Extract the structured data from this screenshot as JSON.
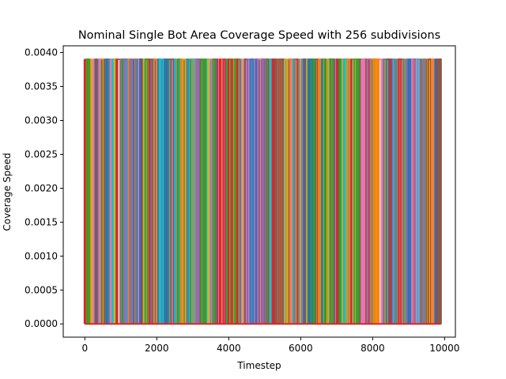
{
  "chart_data": {
    "type": "line",
    "title": "Nominal Single Bot Area Coverage Speed with 256 subdivisions",
    "xlabel": "Timestep",
    "ylabel": "Coverage Speed",
    "xlim": [
      -600,
      10300
    ],
    "ylim": [
      -0.000195,
      0.0041
    ],
    "xticks": [
      0,
      2000,
      4000,
      6000,
      8000,
      10000
    ],
    "xtick_labels": [
      "0",
      "2000",
      "4000",
      "6000",
      "8000",
      "10000"
    ],
    "yticks": [
      0.0,
      0.0005,
      0.001,
      0.0015,
      0.002,
      0.0025,
      0.003,
      0.0035,
      0.004
    ],
    "ytick_labels": [
      "0.0000",
      "0.0005",
      "0.0010",
      "0.0015",
      "0.0020",
      "0.0025",
      "0.0030",
      "0.0035",
      "0.0040"
    ],
    "grid": false,
    "legend": "none",
    "series_peak_value": 0.0039,
    "series_base_value": 0.0,
    "num_series": 256,
    "x_extent": [
      0,
      9900
    ],
    "palette": [
      "#1f77b4",
      "#ff7f0e",
      "#2ca02c",
      "#d62728",
      "#9467bd",
      "#8c564b",
      "#e377c2",
      "#7f7f7f",
      "#bcbd22",
      "#17becf"
    ]
  }
}
